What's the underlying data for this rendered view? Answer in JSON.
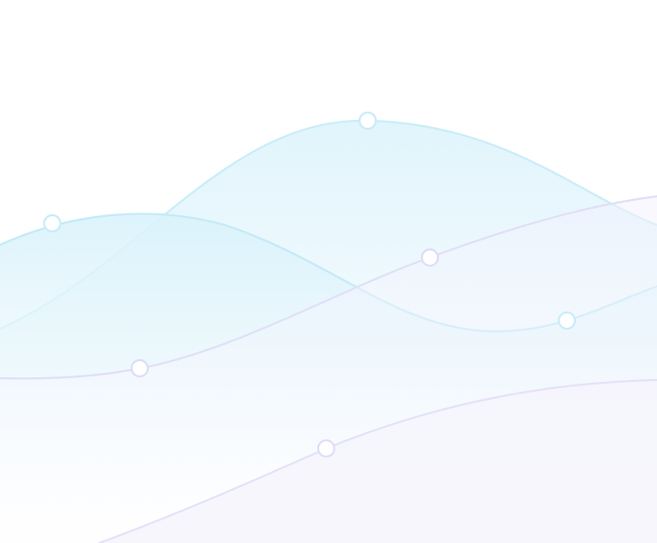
{
  "background": {
    "colors": {
      "page": "#ffffff",
      "cyan": "#bfe9f7",
      "cyan_fill": "#e9f8fd",
      "lavender": "#dcdcf7",
      "lavender_fill": "#f4f3fd"
    },
    "markers_count": 6
  }
}
